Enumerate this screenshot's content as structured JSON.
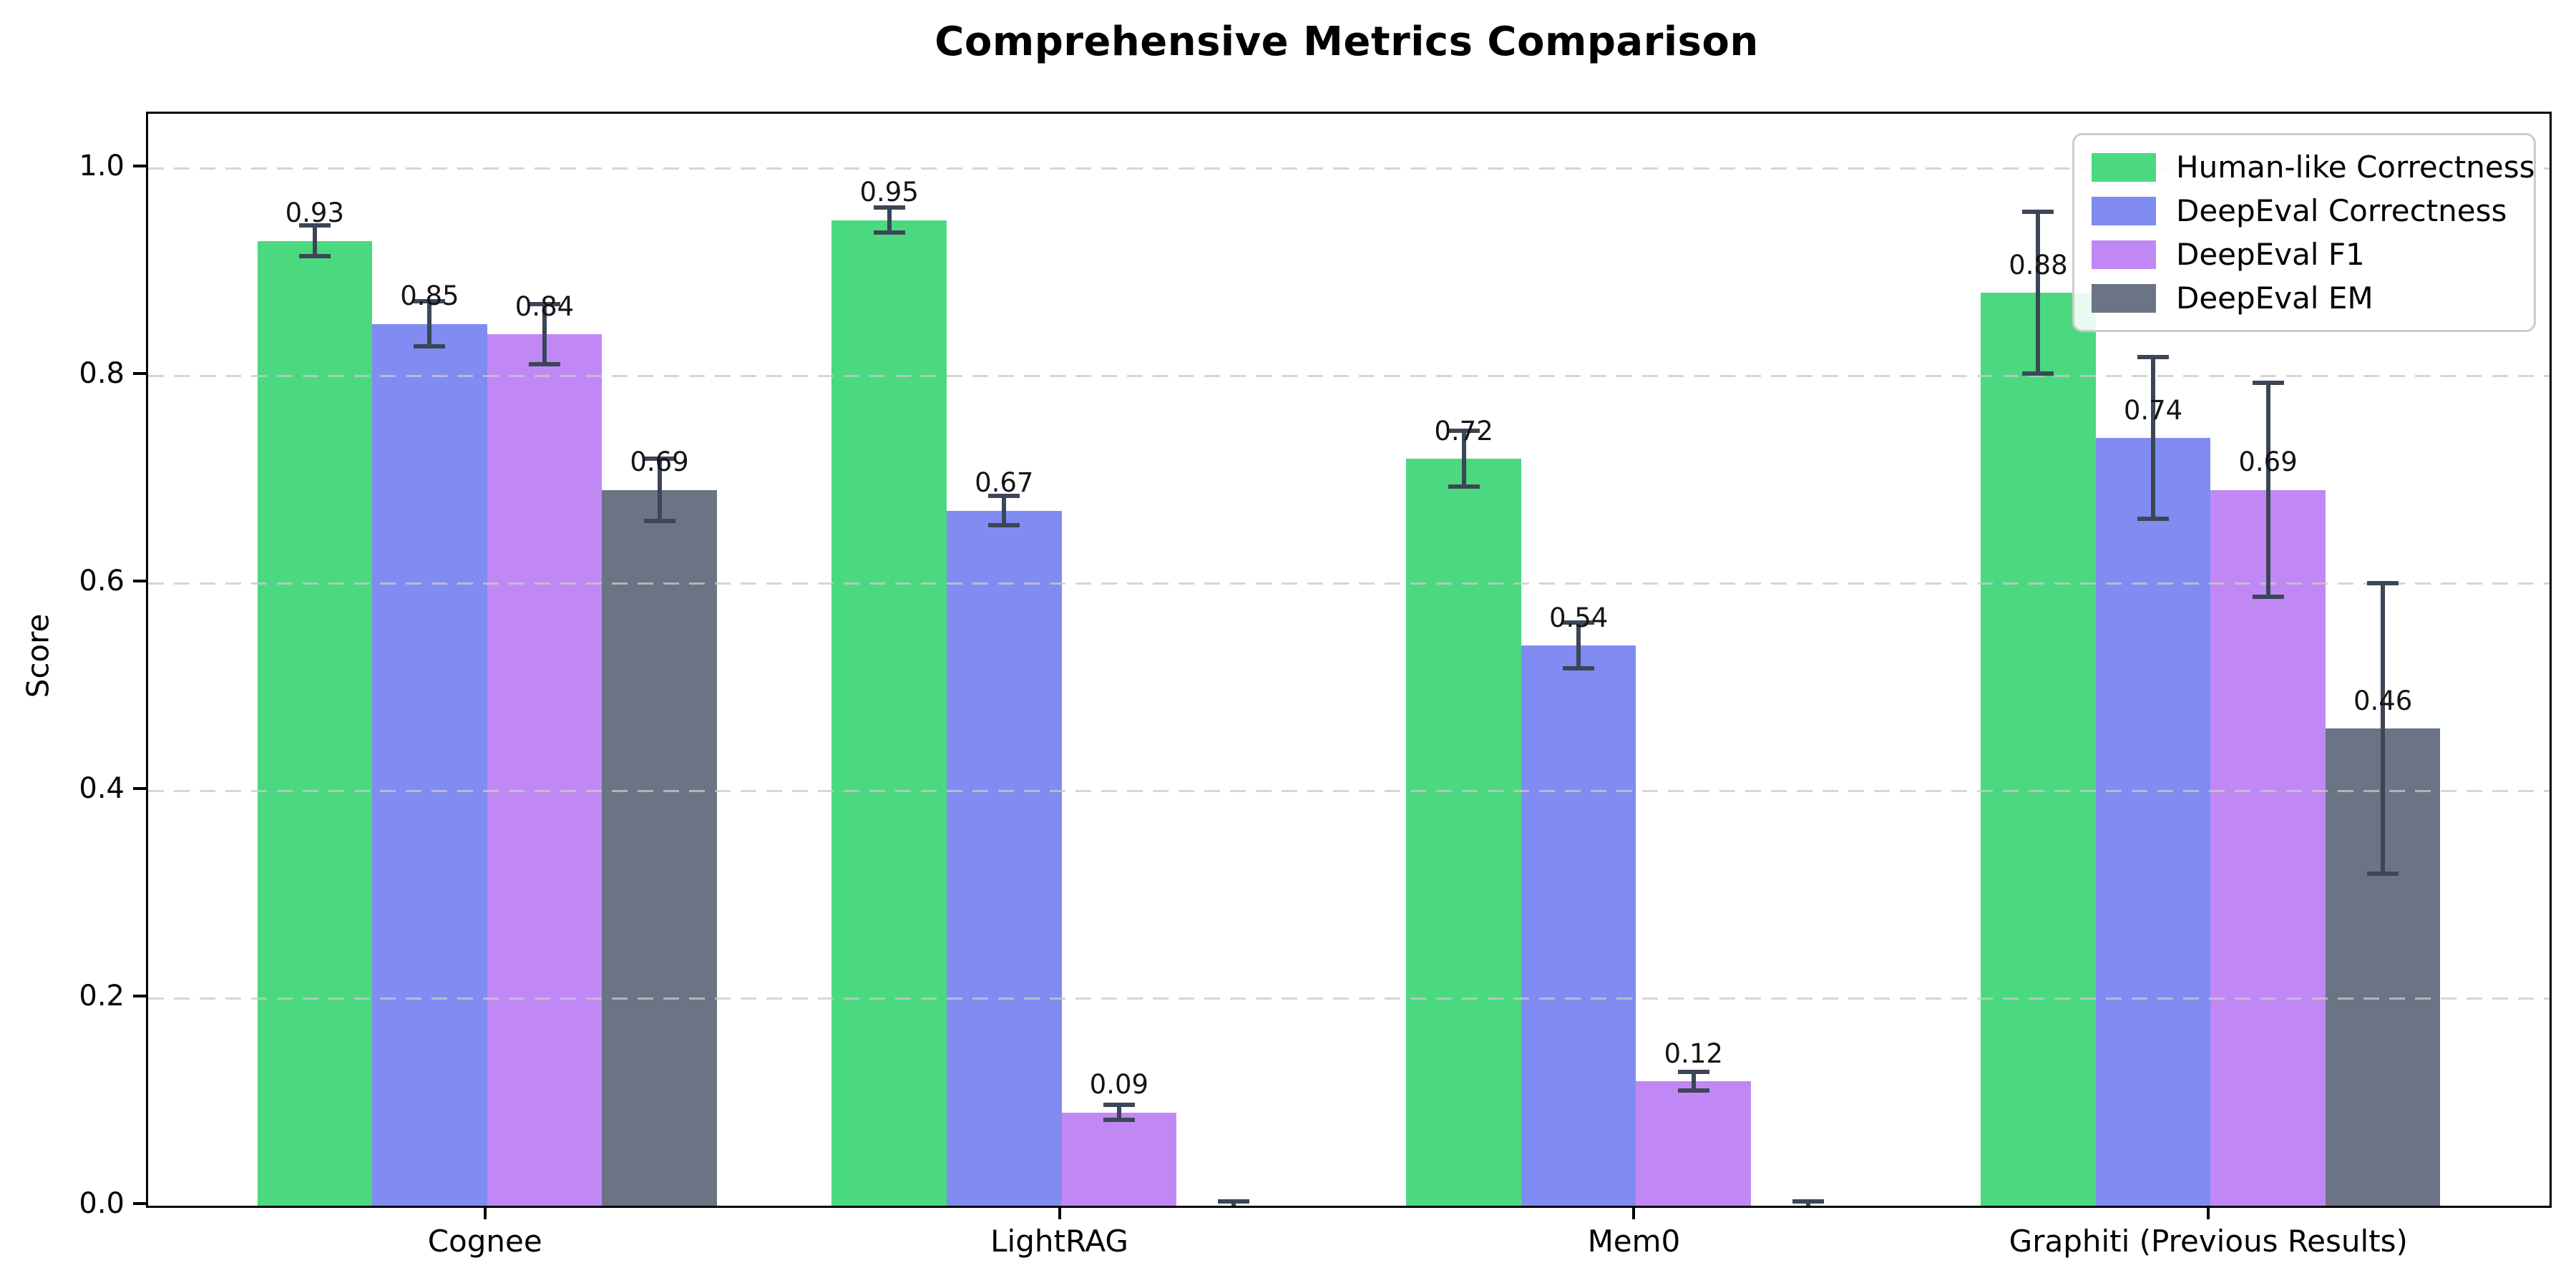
{
  "chart_data": {
    "type": "bar",
    "title": "Comprehensive Metrics Comparison",
    "xlabel": "",
    "ylabel": "Score",
    "categories": [
      "Cognee",
      "LightRAG",
      "Mem0",
      "Graphiti (Previous Results)"
    ],
    "series": [
      {
        "name": "Human-like Correctness",
        "color": "#4bd980",
        "values": [
          0.93,
          0.95,
          0.72,
          0.88
        ],
        "errors": [
          0.015,
          0.012,
          0.027,
          0.078
        ],
        "labels": [
          "0.93",
          "0.95",
          "0.72",
          "0.88"
        ]
      },
      {
        "name": "DeepEval Correctness",
        "color": "#808cf2",
        "values": [
          0.85,
          0.67,
          0.54,
          0.74
        ],
        "errors": [
          0.022,
          0.014,
          0.022,
          0.078
        ],
        "labels": [
          "0.85",
          "0.67",
          "0.54",
          "0.74"
        ]
      },
      {
        "name": "DeepEval F1",
        "color": "#c188f5",
        "values": [
          0.84,
          0.09,
          0.12,
          0.69
        ],
        "errors": [
          0.029,
          0.007,
          0.009,
          0.103
        ],
        "labels": [
          "0.84",
          "0.09",
          "0.12",
          "0.69"
        ]
      },
      {
        "name": "DeepEval EM",
        "color": "#6b7484",
        "values": [
          0.69,
          0.0,
          0.0,
          0.46
        ],
        "errors": [
          0.03,
          0.004,
          0.004,
          0.14
        ],
        "labels": [
          "0.69",
          null,
          null,
          "0.46"
        ]
      }
    ],
    "yticks": [
      {
        "value": 0.0,
        "label": "0.0"
      },
      {
        "value": 0.2,
        "label": "0.2"
      },
      {
        "value": 0.4,
        "label": "0.4"
      },
      {
        "value": 0.6,
        "label": "0.6"
      },
      {
        "value": 0.8,
        "label": "0.8"
      },
      {
        "value": 1.0,
        "label": "1.0"
      }
    ],
    "ylim": [
      0,
      1.052
    ],
    "grid": "horizontal-dashed",
    "legend_position": "upper right",
    "style": {
      "error_bar_color": "#3b4657",
      "grid_color": "#c9c9c9",
      "spine_color": "#000000",
      "background": "#ffffff"
    }
  }
}
